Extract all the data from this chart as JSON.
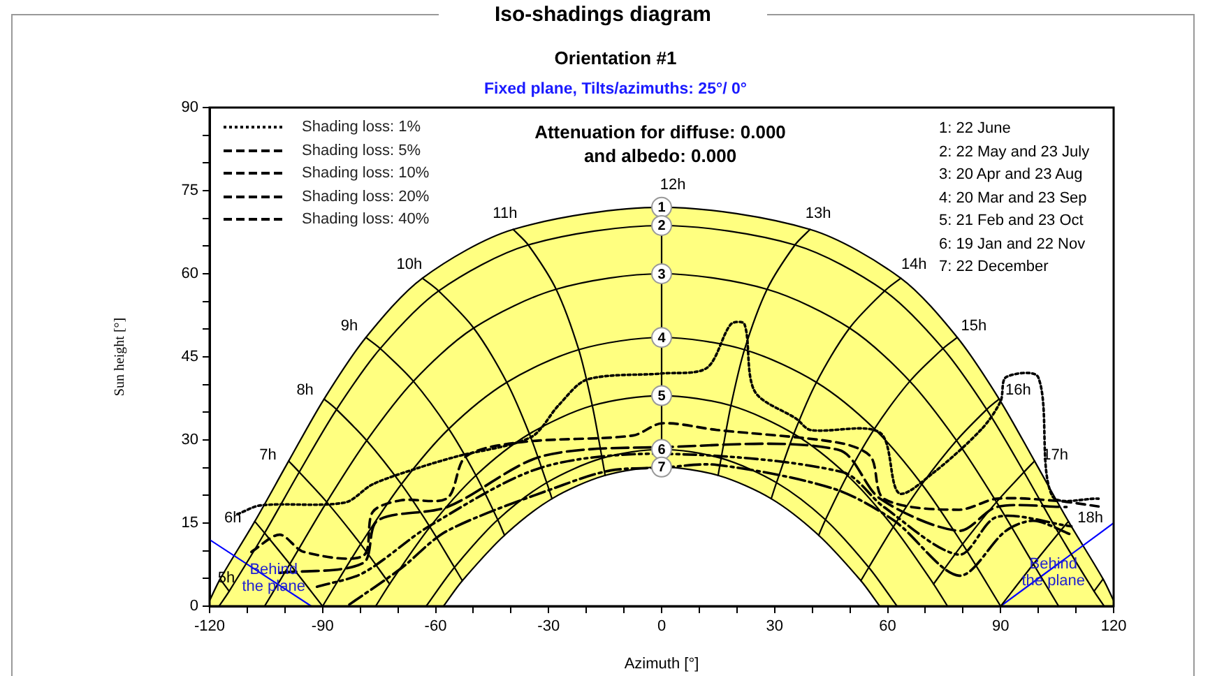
{
  "chart_data": {
    "type": "line",
    "title": "Iso-shadings diagram",
    "subtitle": "Orientation #1",
    "xlabel": "Azimuth [°]",
    "ylabel": "Sun height [°]",
    "xlim": [
      -120,
      120
    ],
    "ylim": [
      0,
      90
    ],
    "xticks": [
      -120,
      {
        "value": -110,
        "label": null
      },
      {
        "value": -100,
        "label": null
      },
      -90,
      {
        "value": -80,
        "label": null
      },
      {
        "value": -70,
        "label": null
      },
      -60,
      {
        "value": -50,
        "label": null
      },
      {
        "value": -40,
        "label": null
      },
      -30,
      {
        "value": -20,
        "label": null
      },
      {
        "value": -10,
        "label": null
      },
      0,
      {
        "value": 10,
        "label": null
      },
      {
        "value": 20,
        "label": null
      },
      30,
      {
        "value": 40,
        "label": null
      },
      {
        "value": 50,
        "label": null
      },
      60,
      {
        "value": 70,
        "label": null
      },
      {
        "value": 80,
        "label": null
      },
      90,
      {
        "value": 100,
        "label": null
      },
      {
        "value": 110,
        "label": null
      },
      120
    ],
    "yticks": [
      0,
      {
        "value": 5,
        "label": null
      },
      {
        "value": 10,
        "label": null
      },
      15,
      {
        "value": 20,
        "label": null
      },
      {
        "value": 25,
        "label": null
      },
      30,
      {
        "value": 35,
        "label": null
      },
      {
        "value": 40,
        "label": null
      },
      45,
      {
        "value": 50,
        "label": null
      },
      {
        "value": 55,
        "label": null
      },
      60,
      {
        "value": 65,
        "label": null
      },
      {
        "value": 70,
        "label": null
      },
      75,
      {
        "value": 80,
        "label": null
      },
      {
        "value": 85,
        "label": null
      },
      90
    ],
    "grid": false,
    "legend": "top left",
    "series": [
      {
        "type": "area",
        "color": "#ffff80",
        "x": [
          -120,
          -117.2,
          -108,
          -99,
          -89.6,
          -78.5,
          -63.5,
          -39.4,
          0,
          39.4,
          63.5,
          78.5,
          89.6,
          99,
          108,
          117.2,
          120
        ],
        "values": [
          1,
          4.9,
          15.3,
          26.2,
          37.4,
          48.5,
          59.2,
          68,
          72,
          68,
          59.2,
          48.5,
          37.4,
          26.2,
          15.3,
          4.9,
          1
        ]
      },
      {
        "color": "#000000",
        "x": [
          -117.5,
          -114.8,
          -105.4,
          -96.2,
          -86.3,
          -74.7,
          -59.2,
          -35.4,
          0,
          35.4,
          59.2,
          74.7,
          86.3,
          96.2,
          105.4,
          114.8,
          117.5
        ],
        "values": [
          0,
          2.7,
          13.2,
          24.2,
          35.5,
          46.5,
          56.9,
          65.2,
          68.7,
          65.2,
          56.9,
          46.5,
          35.5,
          24.2,
          13.2,
          2.7,
          0
        ]
      },
      {
        "color": "#000000",
        "x": [
          -105.4,
          -98.7,
          -88.9,
          -78.3,
          -65.9,
          -49.9,
          -28,
          0,
          28,
          49.9,
          65.9,
          78.3,
          88.9,
          98.7,
          105.4
        ],
        "values": [
          0,
          7.6,
          18.8,
          29.9,
          40.6,
          50.2,
          57.2,
          60,
          57.2,
          50.2,
          40.6,
          29.9,
          18.8,
          7.6,
          0
        ]
      },
      {
        "color": "#000000",
        "x": [
          -90,
          -79.9,
          -69.1,
          -56.5,
          -41.1,
          -22,
          0,
          22,
          41.1,
          56.5,
          69.1,
          79.9,
          90
        ],
        "values": [
          0,
          11.2,
          22,
          32,
          40.4,
          46.3,
          48.5,
          46.3,
          40.4,
          32,
          22,
          11.2,
          0
        ]
      },
      {
        "color": "#000000",
        "x": [
          -75.9,
          -72.2,
          -61.5,
          -49.3,
          -35.1,
          -18.4,
          0,
          18.4,
          35.1,
          49.3,
          61.5,
          72.2,
          75.9
        ],
        "values": [
          0,
          4,
          14.3,
          23.6,
          31.1,
          36.2,
          38,
          36.2,
          31.1,
          23.6,
          14.3,
          4,
          0
        ]
      },
      {
        "color": "#000000",
        "x": [
          -62.5,
          -55,
          -43.5,
          -30.5,
          -15.8,
          0,
          15.8,
          30.5,
          43.5,
          55,
          62.5
        ],
        "values": [
          0,
          7,
          15.6,
          22.3,
          26.7,
          28.3,
          26.7,
          22.3,
          15.6,
          7,
          0
        ]
      },
      {
        "type": "area",
        "color": "#ffffff",
        "x": [
          -57.9,
          -52.9,
          -41.7,
          -29.1,
          -15,
          0,
          15,
          29.1,
          41.7,
          52.9,
          57.9
        ],
        "values": [
          0,
          4.6,
          12.8,
          19.4,
          23.6,
          25.1,
          23.6,
          19.4,
          12.8,
          4.6,
          0
        ]
      },
      {
        "color": "#000000",
        "x": [
          0,
          0,
          0,
          0,
          0,
          0,
          0
        ],
        "values": [
          72,
          68.7,
          60,
          48.5,
          38,
          28.3,
          25.1
        ]
      },
      {
        "color": "#000000",
        "x": [
          -39.4,
          -35.4,
          -28,
          -22,
          -18.4,
          -15.8,
          -15
        ],
        "values": [
          68,
          65.2,
          57.2,
          46.3,
          36.2,
          26.7,
          23.6
        ]
      },
      {
        "color": "#000000",
        "x": [
          39.4,
          35.4,
          28,
          22,
          18.4,
          15.8,
          15
        ],
        "values": [
          68,
          65.2,
          57.2,
          46.3,
          36.2,
          26.7,
          23.6
        ]
      },
      {
        "color": "#000000",
        "x": [
          -63.5,
          -59.2,
          -49.9,
          -41.1,
          -35.1,
          -30.5,
          -29.1
        ],
        "values": [
          59.2,
          56.9,
          50.2,
          40.4,
          31.1,
          22.3,
          19.4
        ]
      },
      {
        "color": "#000000",
        "x": [
          63.5,
          59.2,
          49.9,
          41.1,
          35.1,
          30.5,
          29.1
        ],
        "values": [
          59.2,
          56.9,
          50.2,
          40.4,
          31.1,
          22.3,
          19.4
        ]
      },
      {
        "color": "#000000",
        "x": [
          -78.5,
          -74.7,
          -65.9,
          -56.5,
          -49.3,
          -43.5,
          -41.7
        ],
        "values": [
          48.5,
          46.5,
          40.6,
          32,
          23.6,
          15.6,
          12.8
        ]
      },
      {
        "color": "#000000",
        "x": [
          78.5,
          74.7,
          65.9,
          56.5,
          49.3,
          43.5,
          41.7
        ],
        "values": [
          48.5,
          46.5,
          40.6,
          32,
          23.6,
          15.6,
          12.8
        ]
      },
      {
        "color": "#000000",
        "x": [
          -89.6,
          -86.3,
          -78.3,
          -69.1,
          -61.5,
          -55,
          -52.9
        ],
        "values": [
          37.4,
          35.5,
          29.9,
          22,
          14.3,
          7,
          4.6
        ]
      },
      {
        "color": "#000000",
        "x": [
          89.6,
          86.3,
          78.3,
          69.1,
          61.5,
          55,
          52.9
        ],
        "values": [
          37.4,
          35.5,
          29.9,
          22,
          14.3,
          7,
          4.6
        ]
      },
      {
        "color": "#000000",
        "x": [
          -99,
          -96.2,
          -88.9,
          -79.9,
          -72.2
        ],
        "values": [
          26.2,
          24.2,
          18.8,
          11.2,
          4
        ]
      },
      {
        "color": "#000000",
        "x": [
          99,
          96.2,
          88.9,
          79.9,
          72.2
        ],
        "values": [
          26.2,
          24.2,
          18.8,
          11.2,
          4
        ]
      },
      {
        "color": "#000000",
        "x": [
          -108,
          -105.4,
          -98.7,
          -90
        ],
        "values": [
          15.3,
          13.2,
          7.6,
          0
        ]
      },
      {
        "color": "#000000",
        "x": [
          108,
          105.4,
          98.7,
          90
        ],
        "values": [
          15.3,
          13.2,
          7.6,
          0
        ]
      },
      {
        "color": "#000000",
        "x": [
          -117.2,
          -114.8
        ],
        "values": [
          4.9,
          2.7
        ]
      },
      {
        "color": "#000000",
        "x": [
          117.2,
          114.8
        ],
        "values": [
          4.9,
          2.7
        ]
      },
      {
        "name": "Shading loss: 1%",
        "color": "#000000",
        "line_style": "dotted",
        "x": [
          -112.6,
          -106.4,
          -84.1,
          -76.7,
          -64.4,
          -54.5,
          -34.7,
          -27.3,
          -19.8,
          0,
          12,
          18.4,
          22,
          24.7,
          35.8,
          39.5,
          58,
          63,
          72,
          85,
          90,
          91.4,
          100,
          103.7,
          116
        ],
        "values": [
          16.6,
          18.2,
          18.7,
          22,
          25,
          27,
          30.5,
          36.3,
          40.9,
          42,
          43,
          50.9,
          50.9,
          38.8,
          33.8,
          31.8,
          31.3,
          20.4,
          24,
          32,
          37,
          41.3,
          41.3,
          19.9,
          19.4
        ]
      },
      {
        "name": "Shading loss: 5%",
        "color": "#000000",
        "line_style": "dashed",
        "x": [
          -108.9,
          -101.4,
          -95,
          -79.2,
          -76.7,
          -69.3,
          -56.9,
          -52,
          -37.3,
          -7.6,
          0,
          14.7,
          47,
          55.5,
          59,
          79,
          89,
          105,
          116
        ],
        "values": [
          9.8,
          12.9,
          9.8,
          9.1,
          17,
          19.1,
          19.5,
          27,
          29.6,
          30.8,
          33,
          31.8,
          29.5,
          27,
          19.4,
          17.4,
          19.4,
          19,
          18
        ]
      },
      {
        "name": "Shading loss: 10%",
        "color": "#000000",
        "line_style": "dashed",
        "x": [
          -101.4,
          -79.2,
          -75.5,
          -56.9,
          -32,
          0,
          47,
          58,
          79,
          89,
          107.5
        ],
        "values": [
          6,
          7.8,
          15.4,
          17.9,
          27,
          28.7,
          28.2,
          19.4,
          13.6,
          17.9,
          17.9
        ]
      },
      {
        "name": "Shading loss: 20%",
        "color": "#000000",
        "line_style": "dashed",
        "x": [
          -91.5,
          -79.2,
          -61.8,
          -32,
          0,
          48,
          59,
          79,
          89,
          108.8
        ],
        "values": [
          3.5,
          6,
          14.4,
          25,
          27.5,
          24.2,
          17.9,
          9.3,
          16.1,
          14.4
        ]
      },
      {
        "name": "Shading loss: 40%",
        "color": "#000000",
        "line_style": "dashed",
        "x": [
          -82.9,
          -69.2,
          -56.9,
          -26.1,
          -13.5,
          0,
          14.7,
          45.7,
          61.8,
          79,
          91.4,
          98.8,
          108.8
        ],
        "values": [
          0.3,
          6.8,
          13.6,
          21.9,
          24.5,
          25,
          25.5,
          21.2,
          15.4,
          5.5,
          13.6,
          15.4,
          12.9
        ]
      },
      {
        "color": "#0000ff",
        "x": [
          -120,
          -93
        ],
        "values": [
          12,
          0
        ]
      },
      {
        "color": "#0000ff",
        "x": [
          90,
          120
        ],
        "values": [
          0,
          15
        ]
      }
    ],
    "annotations": [
      "Fixed plane, Tilts/azimuths: 25°/ 0°",
      "Attenuation for diffuse: 0.000",
      "and albedo: 0.000",
      "1: 22 June",
      "2: 22 May and 23 July",
      "3: 20 Apr and 23 Aug",
      "4: 20 Mar and 23 Sep",
      "5: 21 Feb and 23 Oct",
      "6: 19 Jan and 22 Nov",
      "7: 22 December",
      {
        "text": "5h",
        "x": -117.2,
        "y": 4.9
      },
      {
        "text": "6h",
        "x": -108,
        "y": 15.3
      },
      {
        "text": "7h",
        "x": -99,
        "y": 26.2
      },
      {
        "text": "8h",
        "x": -89.6,
        "y": 37.4
      },
      {
        "text": "9h",
        "x": -78.5,
        "y": 48.5
      },
      {
        "text": "10h",
        "x": -63.5,
        "y": 59.2
      },
      {
        "text": "11h",
        "x": -39.4,
        "y": 68
      },
      {
        "text": "12h",
        "x": 0,
        "y": 72
      },
      {
        "text": "13h",
        "x": 39.4,
        "y": 68
      },
      {
        "text": "14h",
        "x": 63.5,
        "y": 59.2
      },
      {
        "text": "15h",
        "x": 78.5,
        "y": 48.5
      },
      {
        "text": "16h",
        "x": 89.6,
        "y": 37.4
      },
      {
        "text": "17h",
        "x": 99,
        "y": 26.2
      },
      {
        "text": "18h",
        "x": 108,
        "y": 15.3
      },
      {
        "text": "1",
        "x": 0,
        "y": 72
      },
      {
        "text": "2",
        "x": 0,
        "y": 68.7
      },
      {
        "text": "3",
        "x": 0,
        "y": 60
      },
      {
        "text": "4",
        "x": 0,
        "y": 48.5
      },
      {
        "text": "5",
        "x": 0,
        "y": 38
      },
      {
        "text": "6",
        "x": 0,
        "y": 28.3
      },
      {
        "text": "7",
        "x": 0,
        "y": 25.1
      },
      {
        "text": "Behind the plane",
        "x": -103,
        "y": 5
      },
      {
        "text": "Behind the plane",
        "x": 104,
        "y": 6
      }
    ]
  }
}
